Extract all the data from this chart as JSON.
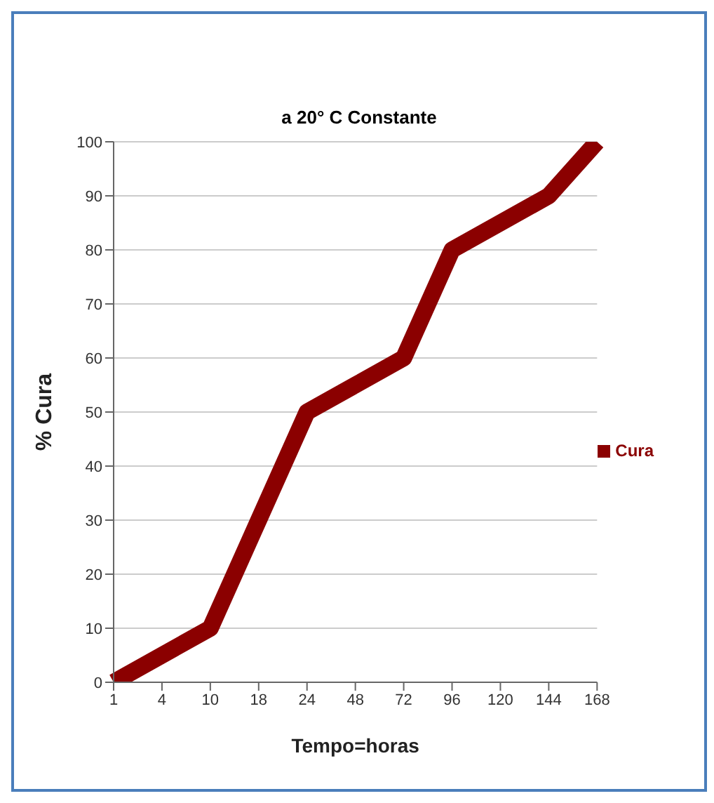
{
  "chart_data": {
    "type": "line",
    "title": "a 20° C Constante",
    "xlabel": "Tempo=horas",
    "ylabel": "% Cura",
    "categories": [
      "1",
      "4",
      "10",
      "18",
      "24",
      "48",
      "72",
      "96",
      "120",
      "144",
      "168"
    ],
    "series": [
      {
        "name": "Cura",
        "color": "#8b0000",
        "values": [
          0,
          5,
          10,
          30,
          50,
          55,
          60,
          80,
          85,
          90,
          100
        ]
      }
    ],
    "ylim": [
      0,
      100
    ],
    "yticks": [
      0,
      10,
      20,
      30,
      40,
      50,
      60,
      70,
      80,
      90,
      100
    ],
    "grid": "y",
    "legend": "right",
    "marker": "none",
    "line_style": "solid"
  }
}
